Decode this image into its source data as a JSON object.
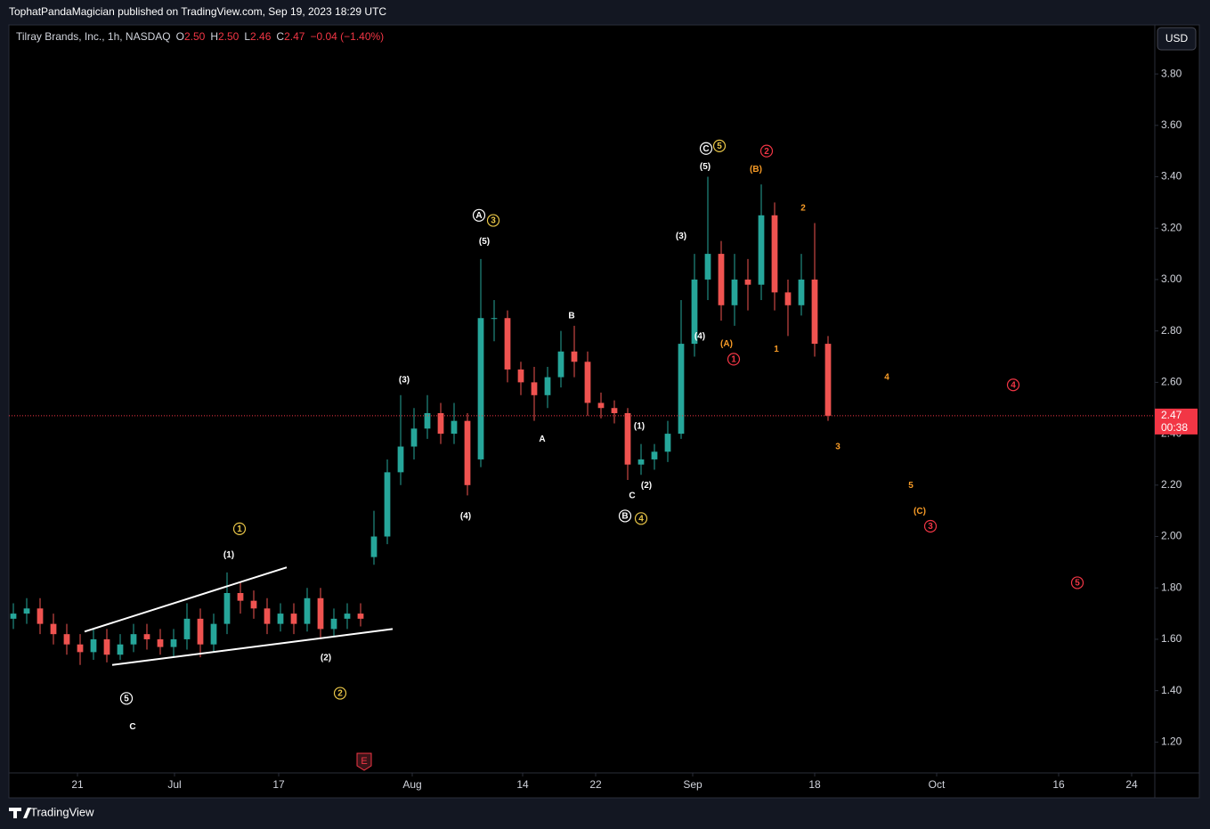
{
  "header": {
    "published": "TophatPandaMagician published on TradingView.com, Sep 19, 2023 18:29 UTC"
  },
  "footer": {
    "brand": "TradingView"
  },
  "chart_data": {
    "type": "candlestick",
    "legend": {
      "symbol": "Tilray Brands, Inc., 1h, NASDAQ",
      "fields": [
        {
          "key": "O",
          "value": "2.50"
        },
        {
          "key": "H",
          "value": "2.50"
        },
        {
          "key": "L",
          "value": "2.46"
        },
        {
          "key": "C",
          "value": "2.47"
        }
      ],
      "change": "−0.04 (−1.40%)"
    },
    "currency": "USD",
    "up_color": "#26a69a",
    "down_color": "#ef5350",
    "x": [
      0.5,
      2,
      3.5,
      5,
      6.5,
      8,
      9.5,
      11,
      12.5,
      14,
      15.5,
      17,
      18.5,
      20,
      21.5,
      23,
      24.5,
      26,
      27.5,
      29,
      30.5,
      32,
      33.5,
      35,
      36.5,
      38,
      39.5,
      41,
      42.5,
      44,
      45.5,
      47,
      48.5,
      50,
      51.5,
      53,
      54.5,
      56,
      57.5,
      59,
      60.5,
      62,
      63.5,
      65,
      66.5,
      68,
      69.5,
      71,
      72.5,
      74,
      75.5,
      77,
      78.5,
      80,
      81.5,
      83,
      84.5,
      86,
      87.5,
      89,
      90.5,
      92
    ],
    "open": [
      1.68,
      1.7,
      1.72,
      1.66,
      1.62,
      1.58,
      1.55,
      1.6,
      1.54,
      1.58,
      1.62,
      1.6,
      1.57,
      1.6,
      1.68,
      1.58,
      1.66,
      1.78,
      1.75,
      1.72,
      1.66,
      1.7,
      1.66,
      1.76,
      1.64,
      1.68,
      1.7,
      1.92,
      2.0,
      2.25,
      2.35,
      2.42,
      2.48,
      2.4,
      2.45,
      2.3,
      2.85,
      2.85,
      2.65,
      2.6,
      2.55,
      2.62,
      2.72,
      2.68,
      2.52,
      2.5,
      2.48,
      2.28,
      2.3,
      2.33,
      2.4,
      2.75,
      3.0,
      3.1,
      2.9,
      3.0,
      2.98,
      3.25,
      2.95,
      2.9,
      3.0,
      2.75
    ],
    "high": [
      1.74,
      1.76,
      1.76,
      1.7,
      1.66,
      1.62,
      1.64,
      1.64,
      1.62,
      1.66,
      1.66,
      1.64,
      1.64,
      1.74,
      1.72,
      1.7,
      1.86,
      1.82,
      1.79,
      1.76,
      1.74,
      1.74,
      1.8,
      1.8,
      1.72,
      1.74,
      1.74,
      2.1,
      2.3,
      2.55,
      2.5,
      2.55,
      2.52,
      2.52,
      2.48,
      3.08,
      2.92,
      2.88,
      2.68,
      2.66,
      2.66,
      2.8,
      2.82,
      2.72,
      2.56,
      2.53,
      2.5,
      2.36,
      2.36,
      2.45,
      2.92,
      3.1,
      3.4,
      3.15,
      3.1,
      3.08,
      3.37,
      3.3,
      3.0,
      3.1,
      3.22,
      2.78
    ],
    "low": [
      1.64,
      1.66,
      1.62,
      1.58,
      1.54,
      1.5,
      1.52,
      1.51,
      1.52,
      1.55,
      1.56,
      1.54,
      1.53,
      1.56,
      1.53,
      1.55,
      1.62,
      1.7,
      1.68,
      1.62,
      1.63,
      1.62,
      1.63,
      1.6,
      1.61,
      1.64,
      1.65,
      1.89,
      1.97,
      2.2,
      2.3,
      2.38,
      2.36,
      2.36,
      2.16,
      2.27,
      2.76,
      2.6,
      2.55,
      2.45,
      2.5,
      2.58,
      2.62,
      2.47,
      2.46,
      2.44,
      2.22,
      2.24,
      2.26,
      2.29,
      2.38,
      2.7,
      2.92,
      2.84,
      2.82,
      2.88,
      2.92,
      2.88,
      2.78,
      2.86,
      2.7,
      2.45
    ],
    "close": [
      1.7,
      1.72,
      1.66,
      1.62,
      1.58,
      1.55,
      1.6,
      1.54,
      1.58,
      1.62,
      1.6,
      1.57,
      1.6,
      1.68,
      1.58,
      1.66,
      1.78,
      1.75,
      1.72,
      1.66,
      1.7,
      1.66,
      1.76,
      1.64,
      1.68,
      1.7,
      1.68,
      2.0,
      2.25,
      2.35,
      2.42,
      2.48,
      2.4,
      2.45,
      2.2,
      2.85,
      2.85,
      2.65,
      2.6,
      2.55,
      2.62,
      2.72,
      2.68,
      2.52,
      2.5,
      2.48,
      2.28,
      2.3,
      2.33,
      2.4,
      2.75,
      3.0,
      3.1,
      2.9,
      3.0,
      2.98,
      3.25,
      2.95,
      2.9,
      3.0,
      2.75,
      2.47
    ],
    "last_price": 2.47,
    "last_price_color": "#f23645",
    "countdown": "00:38",
    "xlim": [
      0,
      128.7
    ],
    "xticks": [
      {
        "value": 7.7,
        "label": "21"
      },
      {
        "value": 18.6,
        "label": "Jul"
      },
      {
        "value": 30.3,
        "label": "17"
      },
      {
        "value": 45.3,
        "label": "Aug"
      },
      {
        "value": 57.7,
        "label": "14"
      },
      {
        "value": 65.9,
        "label": "22"
      },
      {
        "value": 76.8,
        "label": "Sep"
      },
      {
        "value": 90.5,
        "label": "18"
      },
      {
        "value": 104.2,
        "label": "Oct"
      },
      {
        "value": 117.9,
        "label": "16"
      },
      {
        "value": 126.1,
        "label": "24"
      }
    ],
    "ylim": [
      1.08,
      3.88
    ],
    "yticks": [
      {
        "value": 1.2,
        "label": "1.20"
      },
      {
        "value": 1.4,
        "label": "1.40"
      },
      {
        "value": 1.6,
        "label": "1.60"
      },
      {
        "value": 1.8,
        "label": "1.80"
      },
      {
        "value": 2.0,
        "label": "2.00"
      },
      {
        "value": 2.2,
        "label": "2.20"
      },
      {
        "value": 2.4,
        "label": "2.40"
      },
      {
        "value": 2.6,
        "label": "2.60"
      },
      {
        "value": 2.8,
        "label": "2.80"
      },
      {
        "value": 3.0,
        "label": "3.00"
      },
      {
        "value": 3.2,
        "label": "3.20"
      },
      {
        "value": 3.4,
        "label": "3.40"
      },
      {
        "value": 3.6,
        "label": "3.60"
      },
      {
        "value": 3.8,
        "label": "3.80"
      }
    ],
    "grid": false,
    "trendlines": [
      {
        "x": [
          8.5,
          31.2
        ],
        "y": [
          1.63,
          1.88
        ]
      },
      {
        "x": [
          11.6,
          43.1
        ],
        "y": [
          1.5,
          1.64
        ]
      }
    ],
    "events": [
      {
        "x": 39.9,
        "label": "E"
      }
    ],
    "annotations": [
      {
        "text": "5",
        "x": 13.2,
        "y": 1.37,
        "color": "#ffffff",
        "circled": true
      },
      {
        "text": "C",
        "x": 13.9,
        "y": 1.26,
        "color": "#ffffff",
        "circled": false
      },
      {
        "text": "(1)",
        "x": 24.7,
        "y": 1.93,
        "color": "#ffffff",
        "circled": false
      },
      {
        "text": "1",
        "x": 25.9,
        "y": 2.03,
        "color": "#e8c547",
        "circled": true
      },
      {
        "text": "(2)",
        "x": 35.6,
        "y": 1.53,
        "color": "#ffffff",
        "circled": false
      },
      {
        "text": "2",
        "x": 37.2,
        "y": 1.39,
        "color": "#e8c547",
        "circled": true
      },
      {
        "text": "(3)",
        "x": 44.4,
        "y": 2.61,
        "color": "#ffffff",
        "circled": false
      },
      {
        "text": "(4)",
        "x": 51.3,
        "y": 2.08,
        "color": "#ffffff",
        "circled": false
      },
      {
        "text": "A",
        "x": 52.8,
        "y": 3.25,
        "color": "#ffffff",
        "circled": true
      },
      {
        "text": "3",
        "x": 54.4,
        "y": 3.23,
        "color": "#e8c547",
        "circled": true
      },
      {
        "text": "(5)",
        "x": 53.4,
        "y": 3.15,
        "color": "#ffffff",
        "circled": false
      },
      {
        "text": "B",
        "x": 63.2,
        "y": 2.86,
        "color": "#ffffff",
        "circled": false
      },
      {
        "text": "A",
        "x": 59.9,
        "y": 2.38,
        "color": "#ffffff",
        "circled": false
      },
      {
        "text": "(1)",
        "x": 70.8,
        "y": 2.43,
        "color": "#ffffff",
        "circled": false
      },
      {
        "text": "C",
        "x": 70.0,
        "y": 2.16,
        "color": "#ffffff",
        "circled": false
      },
      {
        "text": "(2)",
        "x": 71.6,
        "y": 2.2,
        "color": "#ffffff",
        "circled": false
      },
      {
        "text": "B",
        "x": 69.2,
        "y": 2.08,
        "color": "#ffffff",
        "circled": true
      },
      {
        "text": "4",
        "x": 71.0,
        "y": 2.07,
        "color": "#e8c547",
        "circled": true
      },
      {
        "text": "(3)",
        "x": 75.5,
        "y": 3.17,
        "color": "#ffffff",
        "circled": false
      },
      {
        "text": "(4)",
        "x": 77.6,
        "y": 2.78,
        "color": "#ffffff",
        "circled": false
      },
      {
        "text": "C",
        "x": 78.3,
        "y": 3.51,
        "color": "#ffffff",
        "circled": true
      },
      {
        "text": "5",
        "x": 79.8,
        "y": 3.52,
        "color": "#e8c547",
        "circled": true
      },
      {
        "text": "(5)",
        "x": 78.2,
        "y": 3.44,
        "color": "#ffffff",
        "circled": false
      },
      {
        "text": "(A)",
        "x": 80.6,
        "y": 2.75,
        "color": "#f79b26",
        "circled": false
      },
      {
        "text": "1",
        "x": 81.4,
        "y": 2.69,
        "color": "#f23645",
        "circled": true
      },
      {
        "text": "(B)",
        "x": 83.9,
        "y": 3.43,
        "color": "#f79b26",
        "circled": false
      },
      {
        "text": "2",
        "x": 85.1,
        "y": 3.5,
        "color": "#f23645",
        "circled": true
      },
      {
        "text": "2",
        "x": 89.2,
        "y": 3.28,
        "color": "#f79b26",
        "circled": false
      },
      {
        "text": "1",
        "x": 86.2,
        "y": 2.73,
        "color": "#f79b26",
        "circled": false
      },
      {
        "text": "3",
        "x": 93.1,
        "y": 2.35,
        "color": "#f79b26",
        "circled": false
      },
      {
        "text": "4",
        "x": 98.6,
        "y": 2.62,
        "color": "#f79b26",
        "circled": false
      },
      {
        "text": "4",
        "x": 112.8,
        "y": 2.59,
        "color": "#f23645",
        "circled": true
      },
      {
        "text": "5",
        "x": 101.3,
        "y": 2.2,
        "color": "#f79b26",
        "circled": false
      },
      {
        "text": "(C)",
        "x": 102.3,
        "y": 2.1,
        "color": "#f79b26",
        "circled": false
      },
      {
        "text": "3",
        "x": 103.5,
        "y": 2.04,
        "color": "#f23645",
        "circled": true
      },
      {
        "text": "5",
        "x": 120,
        "y": 1.82,
        "color": "#f23645",
        "circled": true
      }
    ]
  }
}
